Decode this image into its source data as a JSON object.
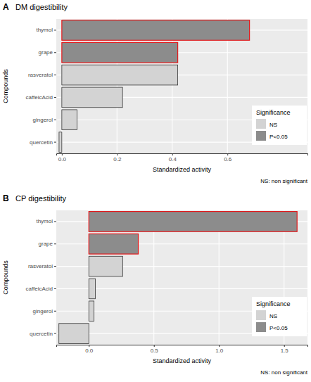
{
  "chart_data": [
    {
      "type": "bar",
      "orientation": "horizontal",
      "panel_label": "A",
      "title": "DM digestibility",
      "x_label": "Standardized activity",
      "y_label": "Compounds",
      "categories": [
        "thymol",
        "grape",
        "rasveratol",
        "caffeicAcid",
        "gingerol",
        "quercetin"
      ],
      "series": [
        {
          "name": "NS",
          "color": "#d3d3d3",
          "values": [
            null,
            null,
            0.42,
            0.22,
            0.055,
            -0.01
          ]
        },
        {
          "name": "P<0.05",
          "color": "#8c8c8c",
          "values": [
            0.68,
            0.42,
            null,
            null,
            null,
            null
          ]
        }
      ],
      "xlim": [
        -0.02,
        0.89
      ],
      "xticks": [
        {
          "value": 0,
          "label": "0.0"
        },
        0.2,
        0.4,
        0.6
      ],
      "grid": true,
      "legend": "right",
      "legend_title": "Significance",
      "annotations": [
        "NS: non significant"
      ]
    },
    {
      "type": "bar",
      "orientation": "horizontal",
      "panel_label": "B",
      "title": "CP digestibility",
      "x_label": "Standardized activity",
      "y_label": "Compounds",
      "categories": [
        "thymol",
        "grape",
        "rasveratol",
        "caffeicAcid",
        "gingerol",
        "quercetin"
      ],
      "series": [
        {
          "name": "NS",
          "color": "#d3d3d3",
          "values": [
            null,
            null,
            0.26,
            0.05,
            0.04,
            -0.23
          ]
        },
        {
          "name": "P<0.05",
          "color": "#8c8c8c",
          "values": [
            1.6,
            0.38,
            null,
            null,
            null,
            null
          ]
        }
      ],
      "xlim": [
        -0.25,
        1.68
      ],
      "xticks": [
        {
          "value": 0,
          "label": "0.0"
        },
        0.5,
        {
          "value": 1,
          "label": "1.0"
        },
        1.5
      ],
      "grid": true,
      "legend": "right",
      "legend_title": "Significance",
      "annotations": [
        "NS: non significant"
      ]
    }
  ]
}
